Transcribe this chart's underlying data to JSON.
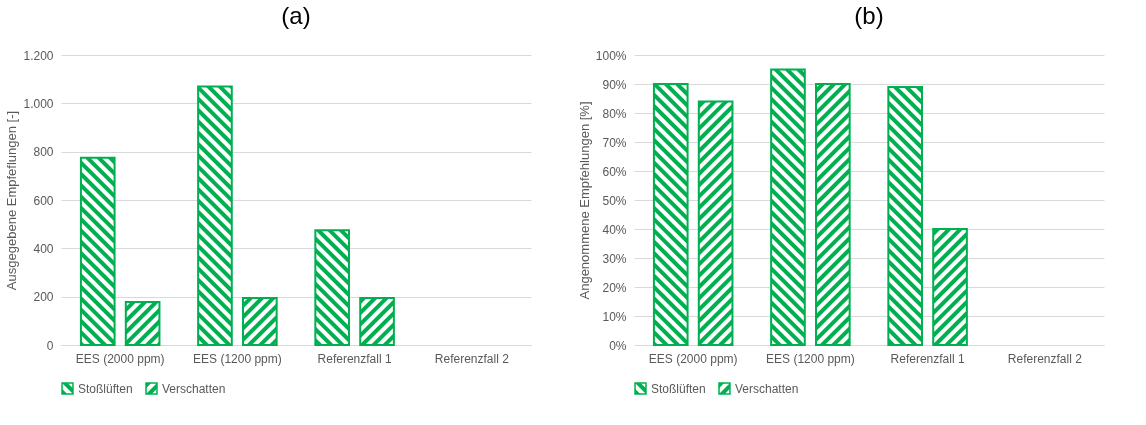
{
  "chart_data": [
    {
      "type": "bar",
      "title": "(a)",
      "ylabel": "Ausgegebene Empfeflungen [-]",
      "categories": [
        "EES (2000 ppm)",
        "EES (1200 ppm)",
        "Referenzfall 1",
        "Referenzfall 2"
      ],
      "series": [
        {
          "name": "Stoßlüften",
          "color": "#00b050",
          "values": [
            775,
            1070,
            475,
            null
          ]
        },
        {
          "name": "Verschatten",
          "color": "#00b050",
          "values": [
            178,
            195,
            195,
            null
          ]
        }
      ],
      "ylim": [
        0,
        1200
      ],
      "yticks": [
        0,
        200,
        400,
        600,
        800,
        {
          "value": 1000,
          "label": "1.000"
        },
        {
          "value": 1200,
          "label": "1.200"
        }
      ],
      "grid": "y",
      "legend": "bottom"
    },
    {
      "type": "bar",
      "title": "(b)",
      "ylabel": "Angenommene Empfehlungen [%]",
      "categories": [
        "EES (2000 ppm)",
        "EES (1200 ppm)",
        "Referenzfall 1",
        "Referenzfall 2"
      ],
      "series": [
        {
          "name": "Stoßlüften",
          "color": "#00b050",
          "values": [
            90,
            95,
            89,
            null
          ]
        },
        {
          "name": "Verschatten",
          "color": "#00b050",
          "values": [
            84,
            90,
            40,
            null
          ]
        }
      ],
      "ylim": [
        0,
        100
      ],
      "yticks": [
        {
          "value": 0,
          "label": "0%"
        },
        {
          "value": 10,
          "label": "10%"
        },
        {
          "value": 20,
          "label": "20%"
        },
        {
          "value": 30,
          "label": "30%"
        },
        {
          "value": 40,
          "label": "40%"
        },
        {
          "value": 50,
          "label": "50%"
        },
        {
          "value": 60,
          "label": "60%"
        },
        {
          "value": 70,
          "label": "70%"
        },
        {
          "value": 80,
          "label": "80%"
        },
        {
          "value": 90,
          "label": "90%"
        },
        {
          "value": 100,
          "label": "100%"
        }
      ],
      "grid": "y",
      "legend": "bottom"
    }
  ]
}
